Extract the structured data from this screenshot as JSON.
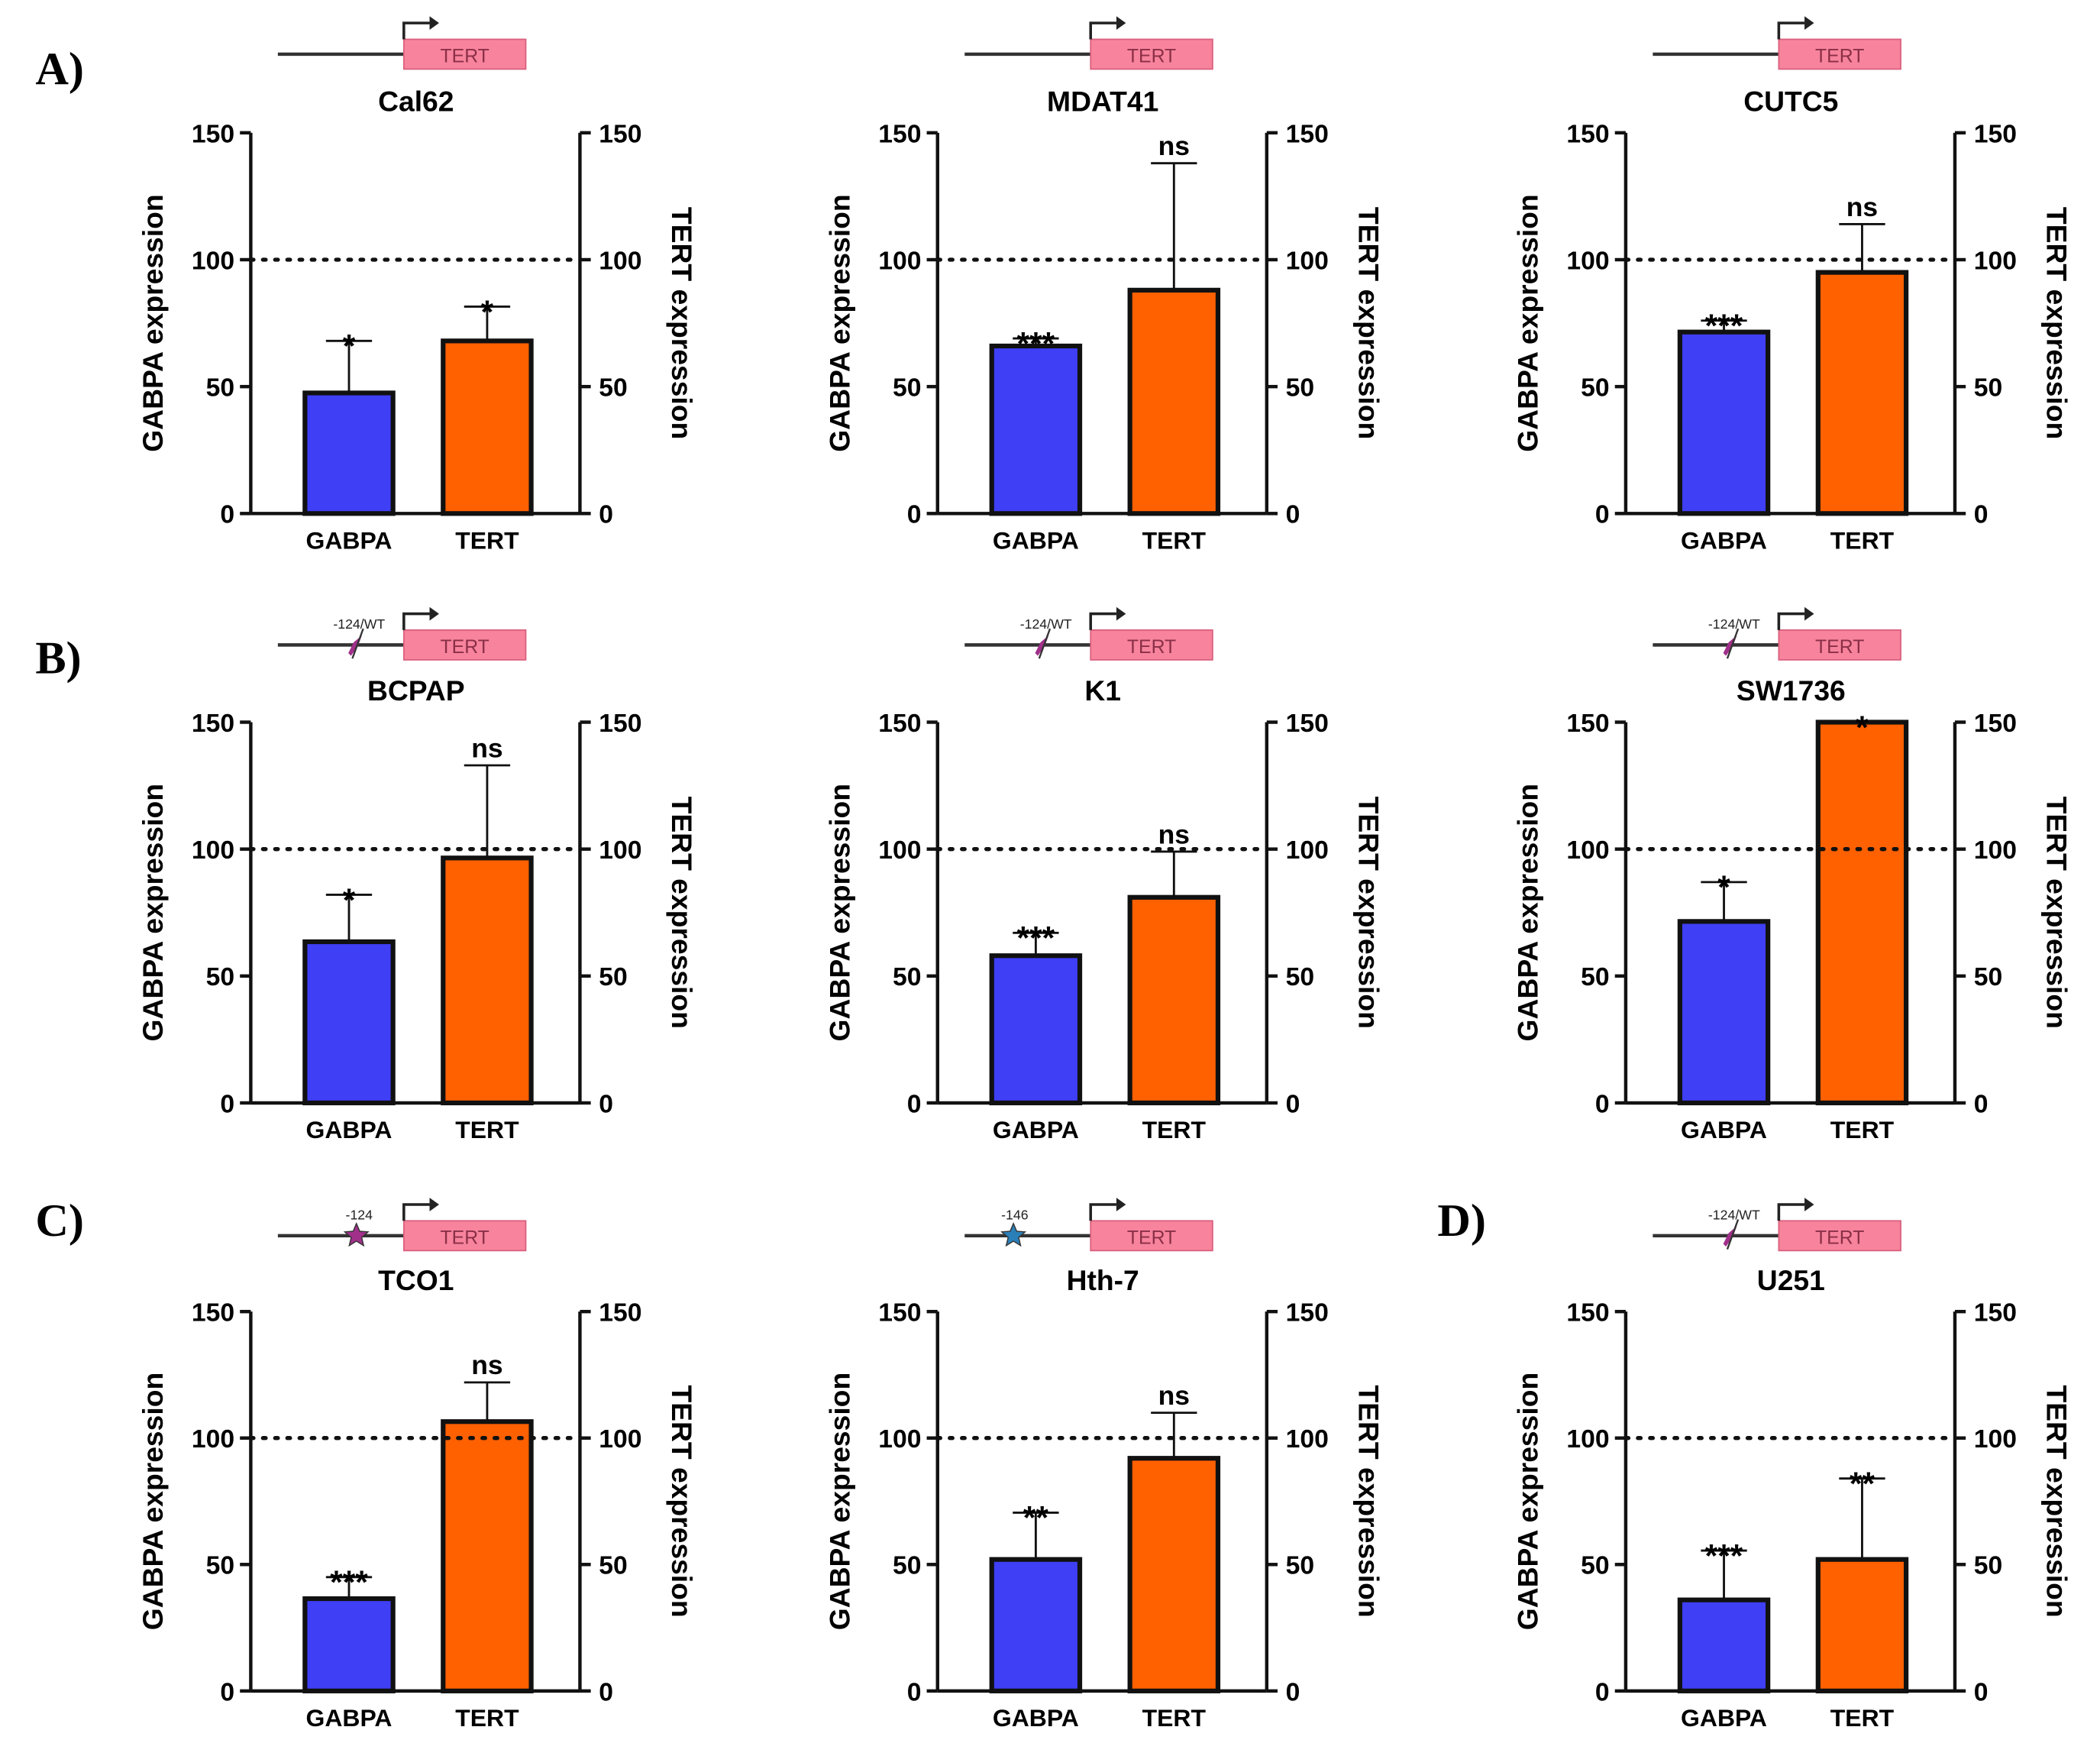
{
  "colors": {
    "gabpa": "#3f3ff5",
    "tert": "#ff6000",
    "gene_box": "#f7839c",
    "gene_text": "#8a2f47",
    "mut_purple": "#a0308a",
    "mut_blue": "#2a7fb8"
  },
  "panel_labels": [
    "A)",
    "B)",
    "C)",
    "D)"
  ],
  "axis_common": {
    "ylabel_left": "GABPA expression",
    "ylabel_right": "TERT expression",
    "yticks": [
      0,
      50,
      100,
      150
    ],
    "ylim": [
      0,
      150
    ],
    "reference_line": 100
  },
  "gene_label": "TERT",
  "chart_data": [
    {
      "type": "bar",
      "title": "Cal62",
      "categories": [
        "GABPA",
        "TERT"
      ],
      "values": [
        47.5,
        68
      ],
      "error_upper": [
        68,
        81.5
      ],
      "significance": [
        "*",
        "*"
      ],
      "promoter": null
    },
    {
      "type": "bar",
      "title": "MDAT41",
      "categories": [
        "GABPA",
        "TERT"
      ],
      "values": [
        66,
        88
      ],
      "error_upper": [
        69,
        138
      ],
      "significance": [
        "***",
        "ns"
      ],
      "promoter": null
    },
    {
      "type": "bar",
      "title": "CUTC5",
      "categories": [
        "GABPA",
        "TERT"
      ],
      "values": [
        71.5,
        95
      ],
      "error_upper": [
        76,
        114
      ],
      "significance": [
        "***",
        "ns"
      ],
      "promoter": null
    },
    {
      "type": "bar",
      "title": "BCPAP",
      "categories": [
        "GABPA",
        "TERT"
      ],
      "values": [
        63.5,
        96.5
      ],
      "error_upper": [
        82,
        133
      ],
      "significance": [
        "*",
        "ns"
      ],
      "promoter": {
        "label": "-124/WT",
        "marker": "bolt"
      }
    },
    {
      "type": "bar",
      "title": "K1",
      "categories": [
        "GABPA",
        "TERT"
      ],
      "values": [
        58,
        81
      ],
      "error_upper": [
        67,
        99
      ],
      "significance": [
        "***",
        "ns"
      ],
      "promoter": {
        "label": "-124/WT",
        "marker": "bolt"
      }
    },
    {
      "type": "bar",
      "title": "SW1736",
      "categories": [
        "GABPA",
        "TERT"
      ],
      "values": [
        71.5,
        150
      ],
      "error_upper": [
        87,
        150
      ],
      "significance": [
        "*",
        "*"
      ],
      "promoter": {
        "label": "-124/WT",
        "marker": "bolt"
      }
    },
    {
      "type": "bar",
      "title": "TCO1",
      "categories": [
        "GABPA",
        "TERT"
      ],
      "values": [
        36.5,
        106.5
      ],
      "error_upper": [
        45,
        122
      ],
      "significance": [
        "***",
        "ns"
      ],
      "promoter": {
        "label": "-124",
        "marker": "star-purple"
      }
    },
    {
      "type": "bar",
      "title": "Hth-7",
      "categories": [
        "GABPA",
        "TERT"
      ],
      "values": [
        52,
        92
      ],
      "error_upper": [
        70.5,
        110
      ],
      "significance": [
        "**",
        "ns"
      ],
      "promoter": {
        "label": "-146",
        "marker": "star-blue"
      }
    },
    {
      "type": "bar",
      "title": "U251",
      "categories": [
        "GABPA",
        "TERT"
      ],
      "values": [
        36,
        52
      ],
      "error_upper": [
        55.5,
        84
      ],
      "significance": [
        "***",
        "**"
      ],
      "promoter": {
        "label": "-124/WT",
        "marker": "bolt"
      }
    }
  ]
}
